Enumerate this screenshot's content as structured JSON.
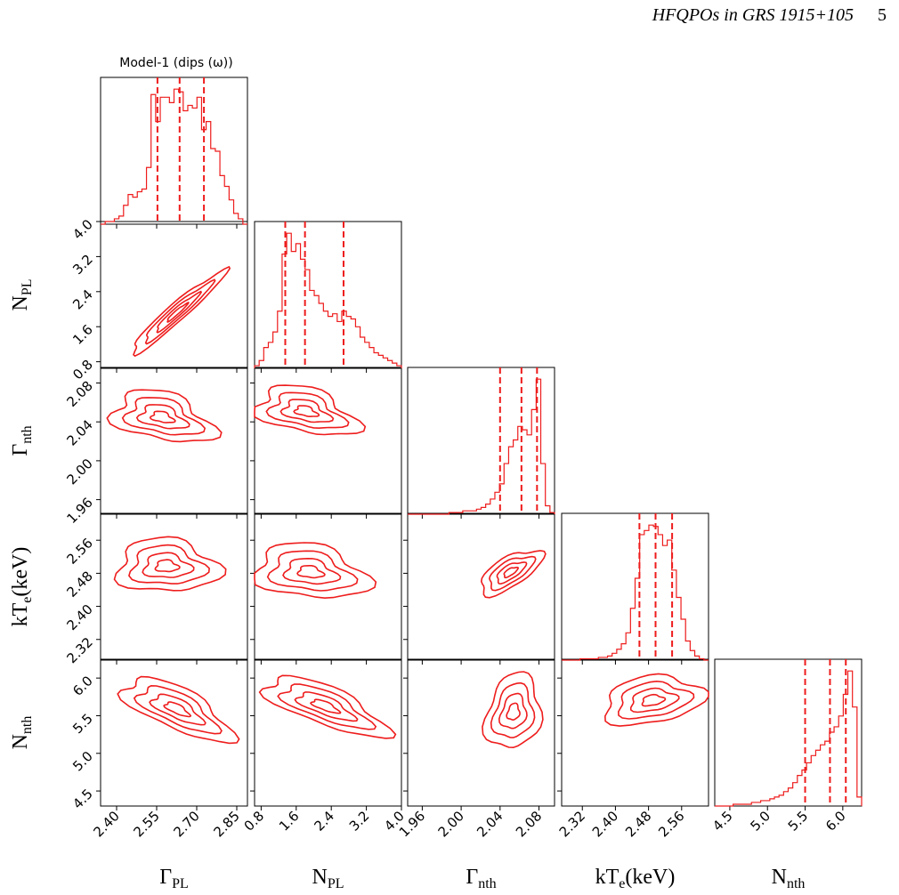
{
  "header": {
    "title": "HFQPOs in GRS 1915+105",
    "page_number": "5"
  },
  "colors": {
    "line": "#ee1c1c",
    "frame": "#000000"
  },
  "chart_data": {
    "type": "corner",
    "title": "Model-1 (dips (ω))",
    "parameters": [
      {
        "key": "gpl",
        "label": "Γ",
        "sub": "PL",
        "range": [
          2.34,
          2.89
        ],
        "ticks": [
          "2.40",
          "2.55",
          "2.70",
          "2.85"
        ],
        "quantiles": [
          2.553,
          2.636,
          2.727
        ]
      },
      {
        "key": "npl",
        "label": "N",
        "sub": "PL",
        "range": [
          0.65,
          4.0
        ],
        "ticks": [
          "0.8",
          "1.6",
          "2.4",
          "3.2",
          "4.0"
        ],
        "quantiles": [
          1.35,
          1.8,
          2.68
        ]
      },
      {
        "key": "gnth",
        "label": "Γ",
        "sub": "nth",
        "range": [
          1.945,
          2.096
        ],
        "ticks": [
          "1.96",
          "2.00",
          "2.04",
          "2.08"
        ],
        "quantiles": [
          2.04,
          2.062,
          2.078
        ]
      },
      {
        "key": "kte",
        "label": "kT",
        "sub": "e",
        "suffix": "(keV)",
        "range": [
          2.27,
          2.625
        ],
        "ticks": [
          "2.32",
          "2.40",
          "2.48",
          "2.56"
        ],
        "quantiles": [
          2.458,
          2.497,
          2.537
        ]
      },
      {
        "key": "nnth",
        "label": "N",
        "sub": "nth",
        "range": [
          4.3,
          6.25
        ],
        "ticks": [
          "4.5",
          "5.0",
          "5.5",
          "6.0"
        ],
        "quantiles": [
          5.5,
          5.83,
          6.04
        ]
      }
    ],
    "histograms": [
      [
        0,
        1,
        1,
        2,
        3,
        7,
        11,
        10,
        12,
        13,
        21,
        48,
        38,
        47,
        47,
        45,
        50,
        49,
        42,
        44,
        43,
        47,
        35,
        38,
        28,
        27,
        18,
        14,
        9,
        4,
        2,
        0
      ],
      [
        1,
        3,
        8,
        10,
        14,
        22,
        44,
        52,
        45,
        48,
        42,
        38,
        30,
        28,
        25,
        22,
        20,
        21,
        18,
        22,
        20,
        19,
        16,
        12,
        10,
        8,
        6,
        5,
        4,
        3,
        2,
        1
      ],
      [
        0,
        0,
        0,
        0,
        0,
        0,
        0,
        0,
        0,
        1,
        1,
        1,
        2,
        2,
        2,
        3,
        4,
        6,
        9,
        13,
        18,
        30,
        40,
        44,
        52,
        50,
        47,
        62,
        80,
        30,
        5,
        1
      ],
      [
        0,
        0,
        0,
        0,
        1,
        1,
        1,
        1,
        2,
        2,
        3,
        5,
        8,
        12,
        20,
        38,
        60,
        92,
        95,
        99,
        98,
        92,
        84,
        88,
        66,
        46,
        30,
        14,
        7,
        3,
        1,
        0
      ],
      [
        0,
        0,
        0,
        0,
        1,
        1,
        1,
        1,
        2,
        2,
        3,
        3,
        4,
        5,
        6,
        8,
        10,
        13,
        17,
        20,
        24,
        28,
        31,
        34,
        36,
        41,
        44,
        50,
        62,
        75,
        55,
        5
      ]
    ]
  }
}
